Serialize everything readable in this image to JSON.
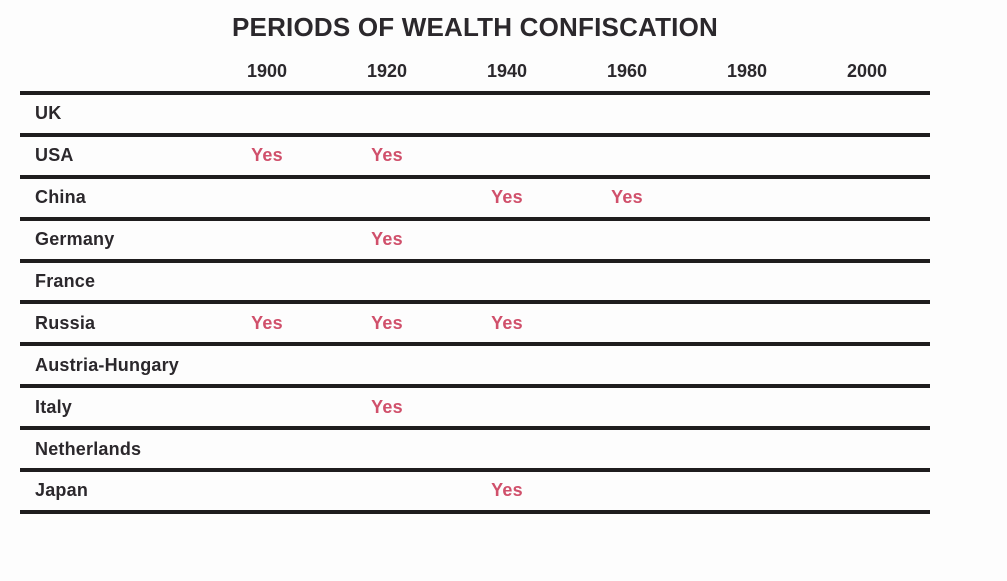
{
  "title": "PERIODS OF WEALTH CONFISCATION",
  "colors": {
    "accent": "#d0506b",
    "line": "#1f1d1e",
    "text": "#2b282c",
    "bg": "#fdfdfd"
  },
  "chart_data": {
    "type": "table",
    "title": "PERIODS OF WEALTH CONFISCATION",
    "columns": [
      "1900",
      "1920",
      "1940",
      "1960",
      "1980",
      "2000"
    ],
    "marker_text": "Yes",
    "marker_color": "#d0506b",
    "layout_hints": {
      "grid": "horizontal rules only, thick black",
      "marker_style": "pink 'Yes' text centered under decade column"
    },
    "rows": [
      {
        "country": "UK",
        "values": [
          "",
          "",
          "",
          "",
          "",
          ""
        ]
      },
      {
        "country": "USA",
        "values": [
          "Yes",
          "Yes",
          "",
          "",
          "",
          ""
        ]
      },
      {
        "country": "China",
        "values": [
          "",
          "",
          "Yes",
          "Yes",
          "",
          ""
        ]
      },
      {
        "country": "Germany",
        "values": [
          "",
          "Yes",
          "",
          "",
          "",
          ""
        ]
      },
      {
        "country": "France",
        "values": [
          "",
          "",
          "",
          "",
          "",
          ""
        ]
      },
      {
        "country": "Russia",
        "values": [
          "Yes",
          "Yes",
          "Yes",
          "",
          "",
          ""
        ]
      },
      {
        "country": "Austria-Hungary",
        "values": [
          "",
          "",
          "",
          "",
          "",
          ""
        ]
      },
      {
        "country": "Italy",
        "values": [
          "",
          "Yes",
          "",
          "",
          "",
          ""
        ]
      },
      {
        "country": "Netherlands",
        "values": [
          "",
          "",
          "",
          "",
          "",
          ""
        ]
      },
      {
        "country": "Japan",
        "values": [
          "",
          "",
          "Yes",
          "",
          "",
          ""
        ]
      }
    ]
  }
}
